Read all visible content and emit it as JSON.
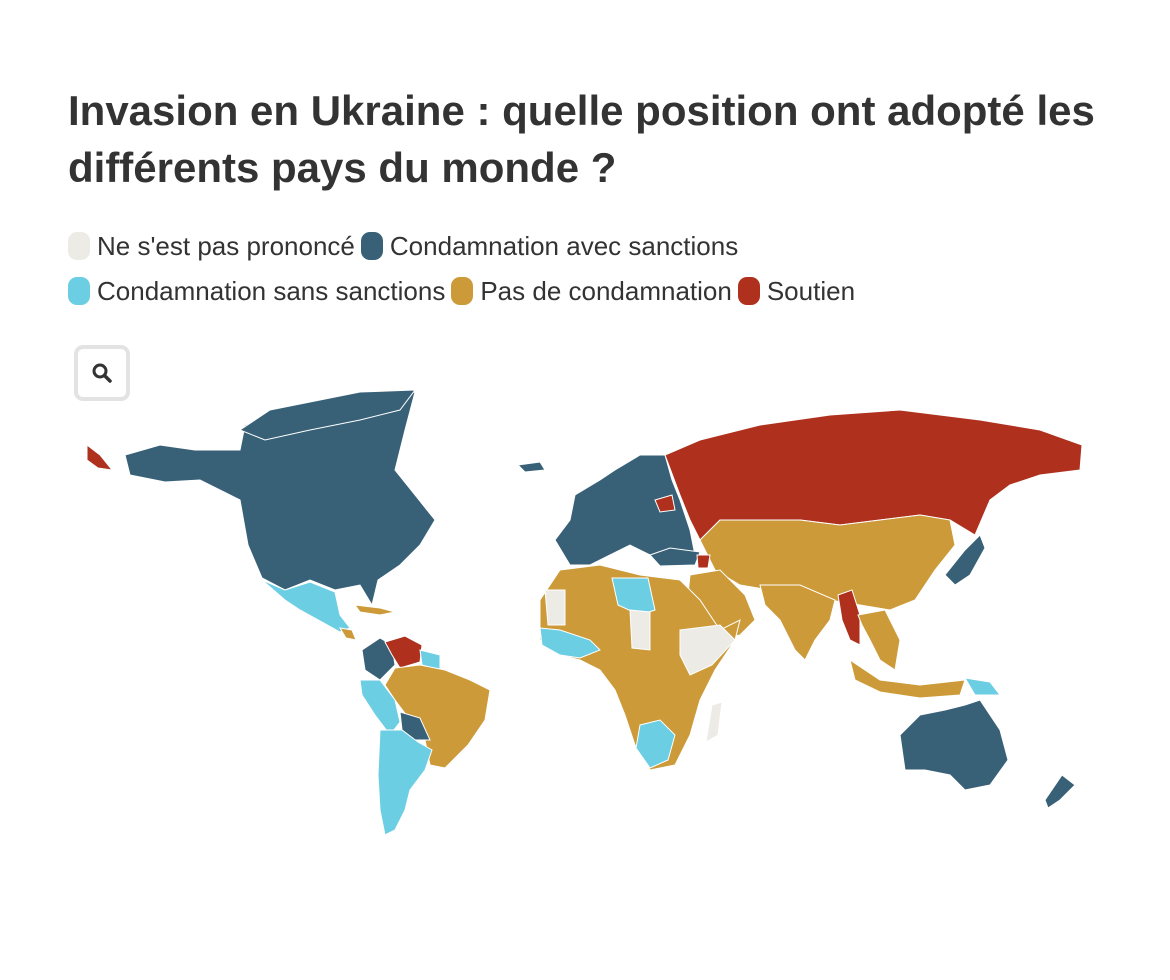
{
  "title": "Invasion en Ukraine : quelle position ont adopté les différents pays du monde ?",
  "legend": [
    {
      "label": "Ne s'est pas prononcé",
      "color": "#ecebe5"
    },
    {
      "label": "Condamnation avec sanctions",
      "color": "#386178"
    },
    {
      "label": "Condamnation sans sanctions",
      "color": "#6ccee3"
    },
    {
      "label": "Pas de condamnation",
      "color": "#cc9a38"
    },
    {
      "label": "Soutien",
      "color": "#ae301d"
    }
  ],
  "search": {
    "icon": "search-icon"
  }
}
